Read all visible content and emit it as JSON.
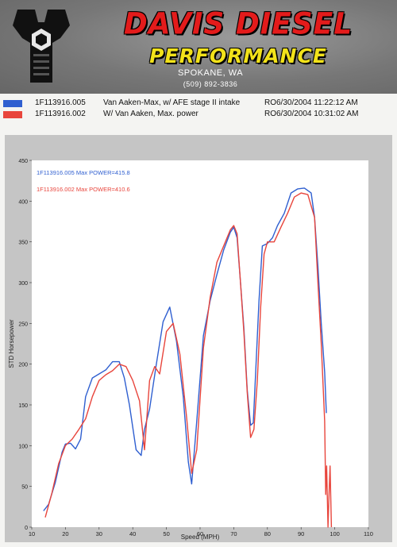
{
  "header": {
    "brand_line1": "DAVIS DIESEL",
    "brand_line2": "PERFORMANCE",
    "city": "SPOKANE, WA",
    "phone": "(509) 892-3836"
  },
  "runs": [
    {
      "id": "1F113916.005",
      "description": "Van Aaken-Max, w/ AFE stage II intake",
      "ro": "RO",
      "date": "6/30/2004 11:22:12 AM",
      "color": "#2f5fd0"
    },
    {
      "id": "1F113916.002",
      "description": "W/ Van Aaken, Max. power",
      "ro": "RO",
      "date": "6/30/2004 10:31:02 AM",
      "color": "#e8453c"
    }
  ],
  "chart_data": {
    "type": "line",
    "xlabel": "Speed (MPH)",
    "ylabel": "STD Horsepower",
    "xlim": [
      10,
      110
    ],
    "ylim": [
      0,
      450
    ],
    "xticks": [
      10,
      20,
      30,
      40,
      50,
      60,
      70,
      80,
      90,
      100,
      110
    ],
    "yticks": [
      0,
      50,
      100,
      150,
      200,
      250,
      300,
      350,
      400,
      450
    ],
    "grid": false,
    "legend_position": "top-left",
    "annotations": [
      {
        "text": "1F113916.005  Max POWER=415.8",
        "series": 0
      },
      {
        "text": "1F113916.002  Max POWER=410.6",
        "series": 1
      }
    ],
    "series": [
      {
        "name": "1F113916.005",
        "color": "#2f5fd0",
        "x": [
          13.5,
          15,
          17,
          19,
          20,
          21.5,
          23,
          24.5,
          26,
          28,
          30,
          32,
          34,
          36,
          37.5,
          39,
          41,
          42.5,
          43.5,
          45,
          47,
          49,
          51,
          53,
          55,
          56.5,
          57.5,
          59,
          61,
          63,
          65,
          67,
          69,
          70,
          71,
          72,
          73,
          74,
          75,
          75.8,
          76.5,
          77.5,
          78.5,
          80,
          81.5,
          83,
          85,
          87,
          89,
          91,
          93,
          94,
          95,
          96,
          97,
          97.5
        ],
        "y": [
          20,
          28,
          55,
          92,
          102,
          103,
          96,
          108,
          160,
          183,
          188,
          193,
          203,
          203,
          183,
          150,
          95,
          88,
          120,
          145,
          200,
          252,
          270,
          228,
          160,
          80,
          53,
          130,
          235,
          278,
          310,
          340,
          362,
          368,
          355,
          300,
          245,
          168,
          125,
          128,
          190,
          278,
          345,
          348,
          355,
          370,
          385,
          410,
          415,
          416,
          410,
          380,
          320,
          250,
          190,
          140
        ]
      },
      {
        "name": "1F113916.002",
        "color": "#e8453c",
        "x": [
          14,
          16,
          18,
          20,
          22,
          24,
          26,
          28,
          30,
          32,
          34,
          36,
          38,
          40,
          42,
          43.5,
          45,
          46.5,
          48,
          50,
          52,
          54,
          56,
          57.5,
          59,
          61,
          63,
          65,
          67,
          69,
          70,
          71,
          72,
          73,
          74,
          75,
          76,
          77,
          78,
          79,
          80,
          82,
          84,
          86,
          88,
          90,
          92,
          94,
          95,
          96,
          97,
          97.3,
          97.6,
          98,
          98.3,
          98.6,
          99
        ],
        "y": [
          12,
          42,
          78,
          100,
          108,
          120,
          133,
          160,
          180,
          187,
          192,
          200,
          197,
          180,
          155,
          95,
          180,
          197,
          188,
          240,
          250,
          212,
          135,
          66,
          95,
          220,
          282,
          325,
          345,
          365,
          370,
          360,
          300,
          240,
          165,
          110,
          120,
          180,
          270,
          335,
          350,
          350,
          368,
          385,
          405,
          410,
          408,
          380,
          300,
          225,
          130,
          40,
          75,
          0,
          40,
          75,
          0
        ]
      }
    ]
  }
}
